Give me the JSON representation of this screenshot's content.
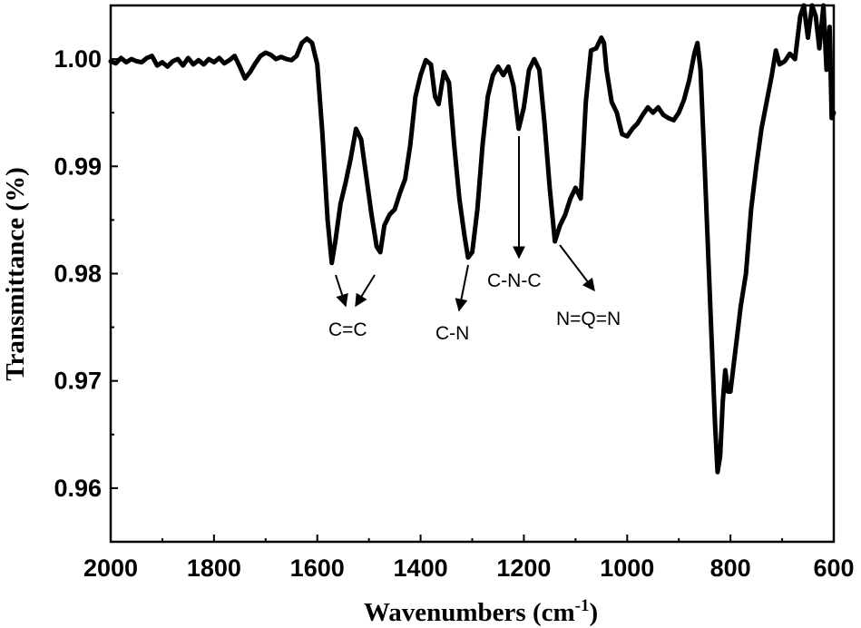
{
  "chart_data": {
    "type": "line",
    "xlabel": "Wavenumbers (cm",
    "xlabel_sup": "-1",
    "xlabel_tail": ")",
    "ylabel": "Transmittance (%)",
    "xlim": [
      2000,
      600
    ],
    "ylim": [
      0.955,
      1.005
    ],
    "x_ticks": [
      2000,
      1800,
      1600,
      1400,
      1200,
      1000,
      800,
      600
    ],
    "x_tick_labels": [
      "2000",
      "1800",
      "1600",
      "1400",
      "1200",
      "1000",
      "800",
      "600"
    ],
    "y_ticks": [
      0.96,
      0.97,
      0.98,
      0.99,
      1.0
    ],
    "y_tick_labels": [
      "0.96",
      "0.97",
      "0.98",
      "0.99",
      "1.00"
    ],
    "grid": false,
    "line_color": "#000000",
    "series": [
      {
        "points": [
          [
            2000,
            0.9998
          ],
          [
            1990,
            0.9996
          ],
          [
            1980,
            1.0001
          ],
          [
            1970,
            0.9997
          ],
          [
            1960,
            1.0
          ],
          [
            1950,
            0.9998
          ],
          [
            1940,
            0.9997
          ],
          [
            1930,
            1.0001
          ],
          [
            1920,
            1.0003
          ],
          [
            1910,
            0.9994
          ],
          [
            1900,
            0.9997
          ],
          [
            1890,
            0.9993
          ],
          [
            1880,
            0.9998
          ],
          [
            1870,
            1.0
          ],
          [
            1860,
            0.9994
          ],
          [
            1850,
            1.0001
          ],
          [
            1840,
            0.9995
          ],
          [
            1830,
            0.9999
          ],
          [
            1820,
            0.9995
          ],
          [
            1810,
            1.0
          ],
          [
            1800,
            0.9997
          ],
          [
            1790,
            1.0001
          ],
          [
            1780,
            0.9996
          ],
          [
            1770,
            0.9999
          ],
          [
            1760,
            1.0003
          ],
          [
            1750,
            0.9993
          ],
          [
            1740,
            0.9982
          ],
          [
            1730,
            0.9988
          ],
          [
            1720,
            0.9996
          ],
          [
            1710,
            1.0003
          ],
          [
            1700,
            1.0006
          ],
          [
            1690,
            1.0004
          ],
          [
            1680,
            1.0
          ],
          [
            1670,
            1.0002
          ],
          [
            1660,
            1.0
          ],
          [
            1650,
            0.9999
          ],
          [
            1640,
            1.0003
          ],
          [
            1630,
            1.0015
          ],
          [
            1620,
            1.0019
          ],
          [
            1610,
            1.0015
          ],
          [
            1600,
            0.9995
          ],
          [
            1590,
            0.993
          ],
          [
            1580,
            0.985
          ],
          [
            1572,
            0.981
          ],
          [
            1565,
            0.983
          ],
          [
            1555,
            0.9865
          ],
          [
            1545,
            0.9885
          ],
          [
            1535,
            0.9908
          ],
          [
            1525,
            0.9935
          ],
          [
            1515,
            0.9925
          ],
          [
            1505,
            0.989
          ],
          [
            1495,
            0.9855
          ],
          [
            1485,
            0.9825
          ],
          [
            1478,
            0.982
          ],
          [
            1470,
            0.9845
          ],
          [
            1460,
            0.9855
          ],
          [
            1450,
            0.986
          ],
          [
            1440,
            0.9875
          ],
          [
            1430,
            0.9888
          ],
          [
            1420,
            0.992
          ],
          [
            1410,
            0.9965
          ],
          [
            1400,
            0.9985
          ],
          [
            1390,
            0.9999
          ],
          [
            1380,
            0.9995
          ],
          [
            1372,
            0.9965
          ],
          [
            1365,
            0.9958
          ],
          [
            1355,
            0.9988
          ],
          [
            1345,
            0.9978
          ],
          [
            1335,
            0.992
          ],
          [
            1325,
            0.987
          ],
          [
            1315,
            0.9835
          ],
          [
            1308,
            0.9815
          ],
          [
            1300,
            0.982
          ],
          [
            1290,
            0.986
          ],
          [
            1280,
            0.992
          ],
          [
            1270,
            0.9965
          ],
          [
            1260,
            0.9985
          ],
          [
            1250,
            0.9993
          ],
          [
            1240,
            0.9985
          ],
          [
            1230,
            0.9993
          ],
          [
            1220,
            0.9975
          ],
          [
            1210,
            0.9935
          ],
          [
            1200,
            0.9955
          ],
          [
            1190,
            0.999
          ],
          [
            1180,
            1.0
          ],
          [
            1170,
            0.999
          ],
          [
            1160,
            0.994
          ],
          [
            1150,
            0.988
          ],
          [
            1140,
            0.983
          ],
          [
            1130,
            0.9845
          ],
          [
            1120,
            0.9855
          ],
          [
            1110,
            0.987
          ],
          [
            1100,
            0.988
          ],
          [
            1090,
            0.987
          ],
          [
            1080,
            0.996
          ],
          [
            1070,
            1.0008
          ],
          [
            1060,
            1.001
          ],
          [
            1050,
            1.002
          ],
          [
            1045,
            1.0015
          ],
          [
            1040,
            0.999
          ],
          [
            1030,
            0.996
          ],
          [
            1020,
            0.995
          ],
          [
            1010,
            0.993
          ],
          [
            1000,
            0.9928
          ],
          [
            990,
            0.9935
          ],
          [
            980,
            0.994
          ],
          [
            970,
            0.9948
          ],
          [
            960,
            0.9955
          ],
          [
            950,
            0.995
          ],
          [
            940,
            0.9955
          ],
          [
            930,
            0.9948
          ],
          [
            920,
            0.9945
          ],
          [
            910,
            0.9943
          ],
          [
            900,
            0.995
          ],
          [
            890,
            0.9962
          ],
          [
            880,
            0.998
          ],
          [
            870,
            1.0005
          ],
          [
            864,
            1.0015
          ],
          [
            858,
            0.999
          ],
          [
            850,
            0.99
          ],
          [
            840,
            0.978
          ],
          [
            830,
            0.966
          ],
          [
            825,
            0.9615
          ],
          [
            820,
            0.963
          ],
          [
            815,
            0.968
          ],
          [
            810,
            0.971
          ],
          [
            805,
            0.969
          ],
          [
            800,
            0.969
          ],
          [
            790,
            0.973
          ],
          [
            780,
            0.977
          ],
          [
            770,
            0.98
          ],
          [
            760,
            0.986
          ],
          [
            750,
            0.99
          ],
          [
            740,
            0.9935
          ],
          [
            730,
            0.996
          ],
          [
            720,
            0.9985
          ],
          [
            712,
            1.0008
          ],
          [
            705,
            0.9995
          ],
          [
            695,
            0.9998
          ],
          [
            685,
            1.0005
          ],
          [
            675,
            1.0
          ],
          [
            665,
            1.004
          ],
          [
            658,
            1.005
          ],
          [
            650,
            1.002
          ],
          [
            642,
            1.005
          ],
          [
            635,
            1.004
          ],
          [
            628,
            1.001
          ],
          [
            620,
            1.005
          ],
          [
            614,
            0.999
          ],
          [
            608,
            1.003
          ],
          [
            604,
            0.9945
          ],
          [
            600,
            0.995
          ]
        ]
      }
    ],
    "annotations": [
      {
        "text": "C=C",
        "arrows_to_x": [
          1572,
          1478
        ]
      },
      {
        "text": "C-N",
        "arrows_to_x": [
          1308
        ]
      },
      {
        "text": "C-N-C",
        "arrows_to_x": [
          1210
        ]
      },
      {
        "text": "N=Q=N",
        "arrows_to_x": [
          1140
        ]
      }
    ]
  }
}
